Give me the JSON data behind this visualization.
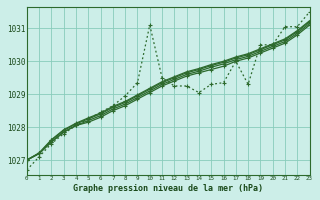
{
  "xlabel": "Graphe pression niveau de la mer (hPa)",
  "bg_color": "#cceee8",
  "grid_color": "#88ccbb",
  "line_color": "#2d6a2d",
  "xlim": [
    0,
    23
  ],
  "ylim": [
    1026.55,
    1031.65
  ],
  "yticks": [
    1027,
    1028,
    1029,
    1030,
    1031
  ],
  "xticks": [
    0,
    1,
    2,
    3,
    4,
    5,
    6,
    7,
    8,
    9,
    10,
    11,
    12,
    13,
    14,
    15,
    16,
    17,
    18,
    19,
    20,
    21,
    22,
    23
  ],
  "series": [
    {
      "y": [
        1026.7,
        1027.1,
        1027.5,
        1027.8,
        1028.05,
        1028.25,
        1028.45,
        1028.65,
        1028.95,
        1029.35,
        1031.1,
        1029.5,
        1029.25,
        1029.25,
        1029.05,
        1029.3,
        1029.35,
        1030.0,
        1029.3,
        1030.5,
        1030.5,
        1031.05,
        1031.05,
        1031.5
      ],
      "style": "dotted",
      "lw": 0.9,
      "marker": "+",
      "ms": 3.5
    },
    {
      "y": [
        1027.0,
        1027.2,
        1027.55,
        1027.85,
        1028.05,
        1028.15,
        1028.3,
        1028.5,
        1028.65,
        1028.85,
        1029.05,
        1029.25,
        1029.4,
        1029.55,
        1029.65,
        1029.75,
        1029.85,
        1030.0,
        1030.1,
        1030.25,
        1030.4,
        1030.55,
        1030.8,
        1031.1
      ],
      "style": "solid",
      "lw": 0.9,
      "marker": "+",
      "ms": 3.0
    },
    {
      "y": [
        1027.0,
        1027.2,
        1027.55,
        1027.85,
        1028.05,
        1028.2,
        1028.35,
        1028.55,
        1028.7,
        1028.9,
        1029.1,
        1029.3,
        1029.45,
        1029.6,
        1029.7,
        1029.82,
        1029.92,
        1030.05,
        1030.15,
        1030.3,
        1030.45,
        1030.6,
        1030.85,
        1031.15
      ],
      "style": "solid",
      "lw": 0.9,
      "marker": "+",
      "ms": 3.0
    },
    {
      "y": [
        1027.0,
        1027.2,
        1027.6,
        1027.9,
        1028.1,
        1028.25,
        1028.4,
        1028.6,
        1028.75,
        1028.95,
        1029.15,
        1029.35,
        1029.5,
        1029.65,
        1029.75,
        1029.87,
        1029.97,
        1030.1,
        1030.2,
        1030.35,
        1030.5,
        1030.65,
        1030.9,
        1031.2
      ],
      "style": "solid",
      "lw": 0.9,
      "marker": "+",
      "ms": 3.0
    },
    {
      "y": [
        1027.0,
        1027.22,
        1027.62,
        1027.92,
        1028.12,
        1028.28,
        1028.43,
        1028.63,
        1028.78,
        1028.98,
        1029.18,
        1029.38,
        1029.53,
        1029.68,
        1029.78,
        1029.9,
        1030.0,
        1030.13,
        1030.23,
        1030.38,
        1030.53,
        1030.68,
        1030.93,
        1031.23
      ],
      "style": "solid",
      "lw": 0.9,
      "marker": "+",
      "ms": 3.0
    }
  ]
}
